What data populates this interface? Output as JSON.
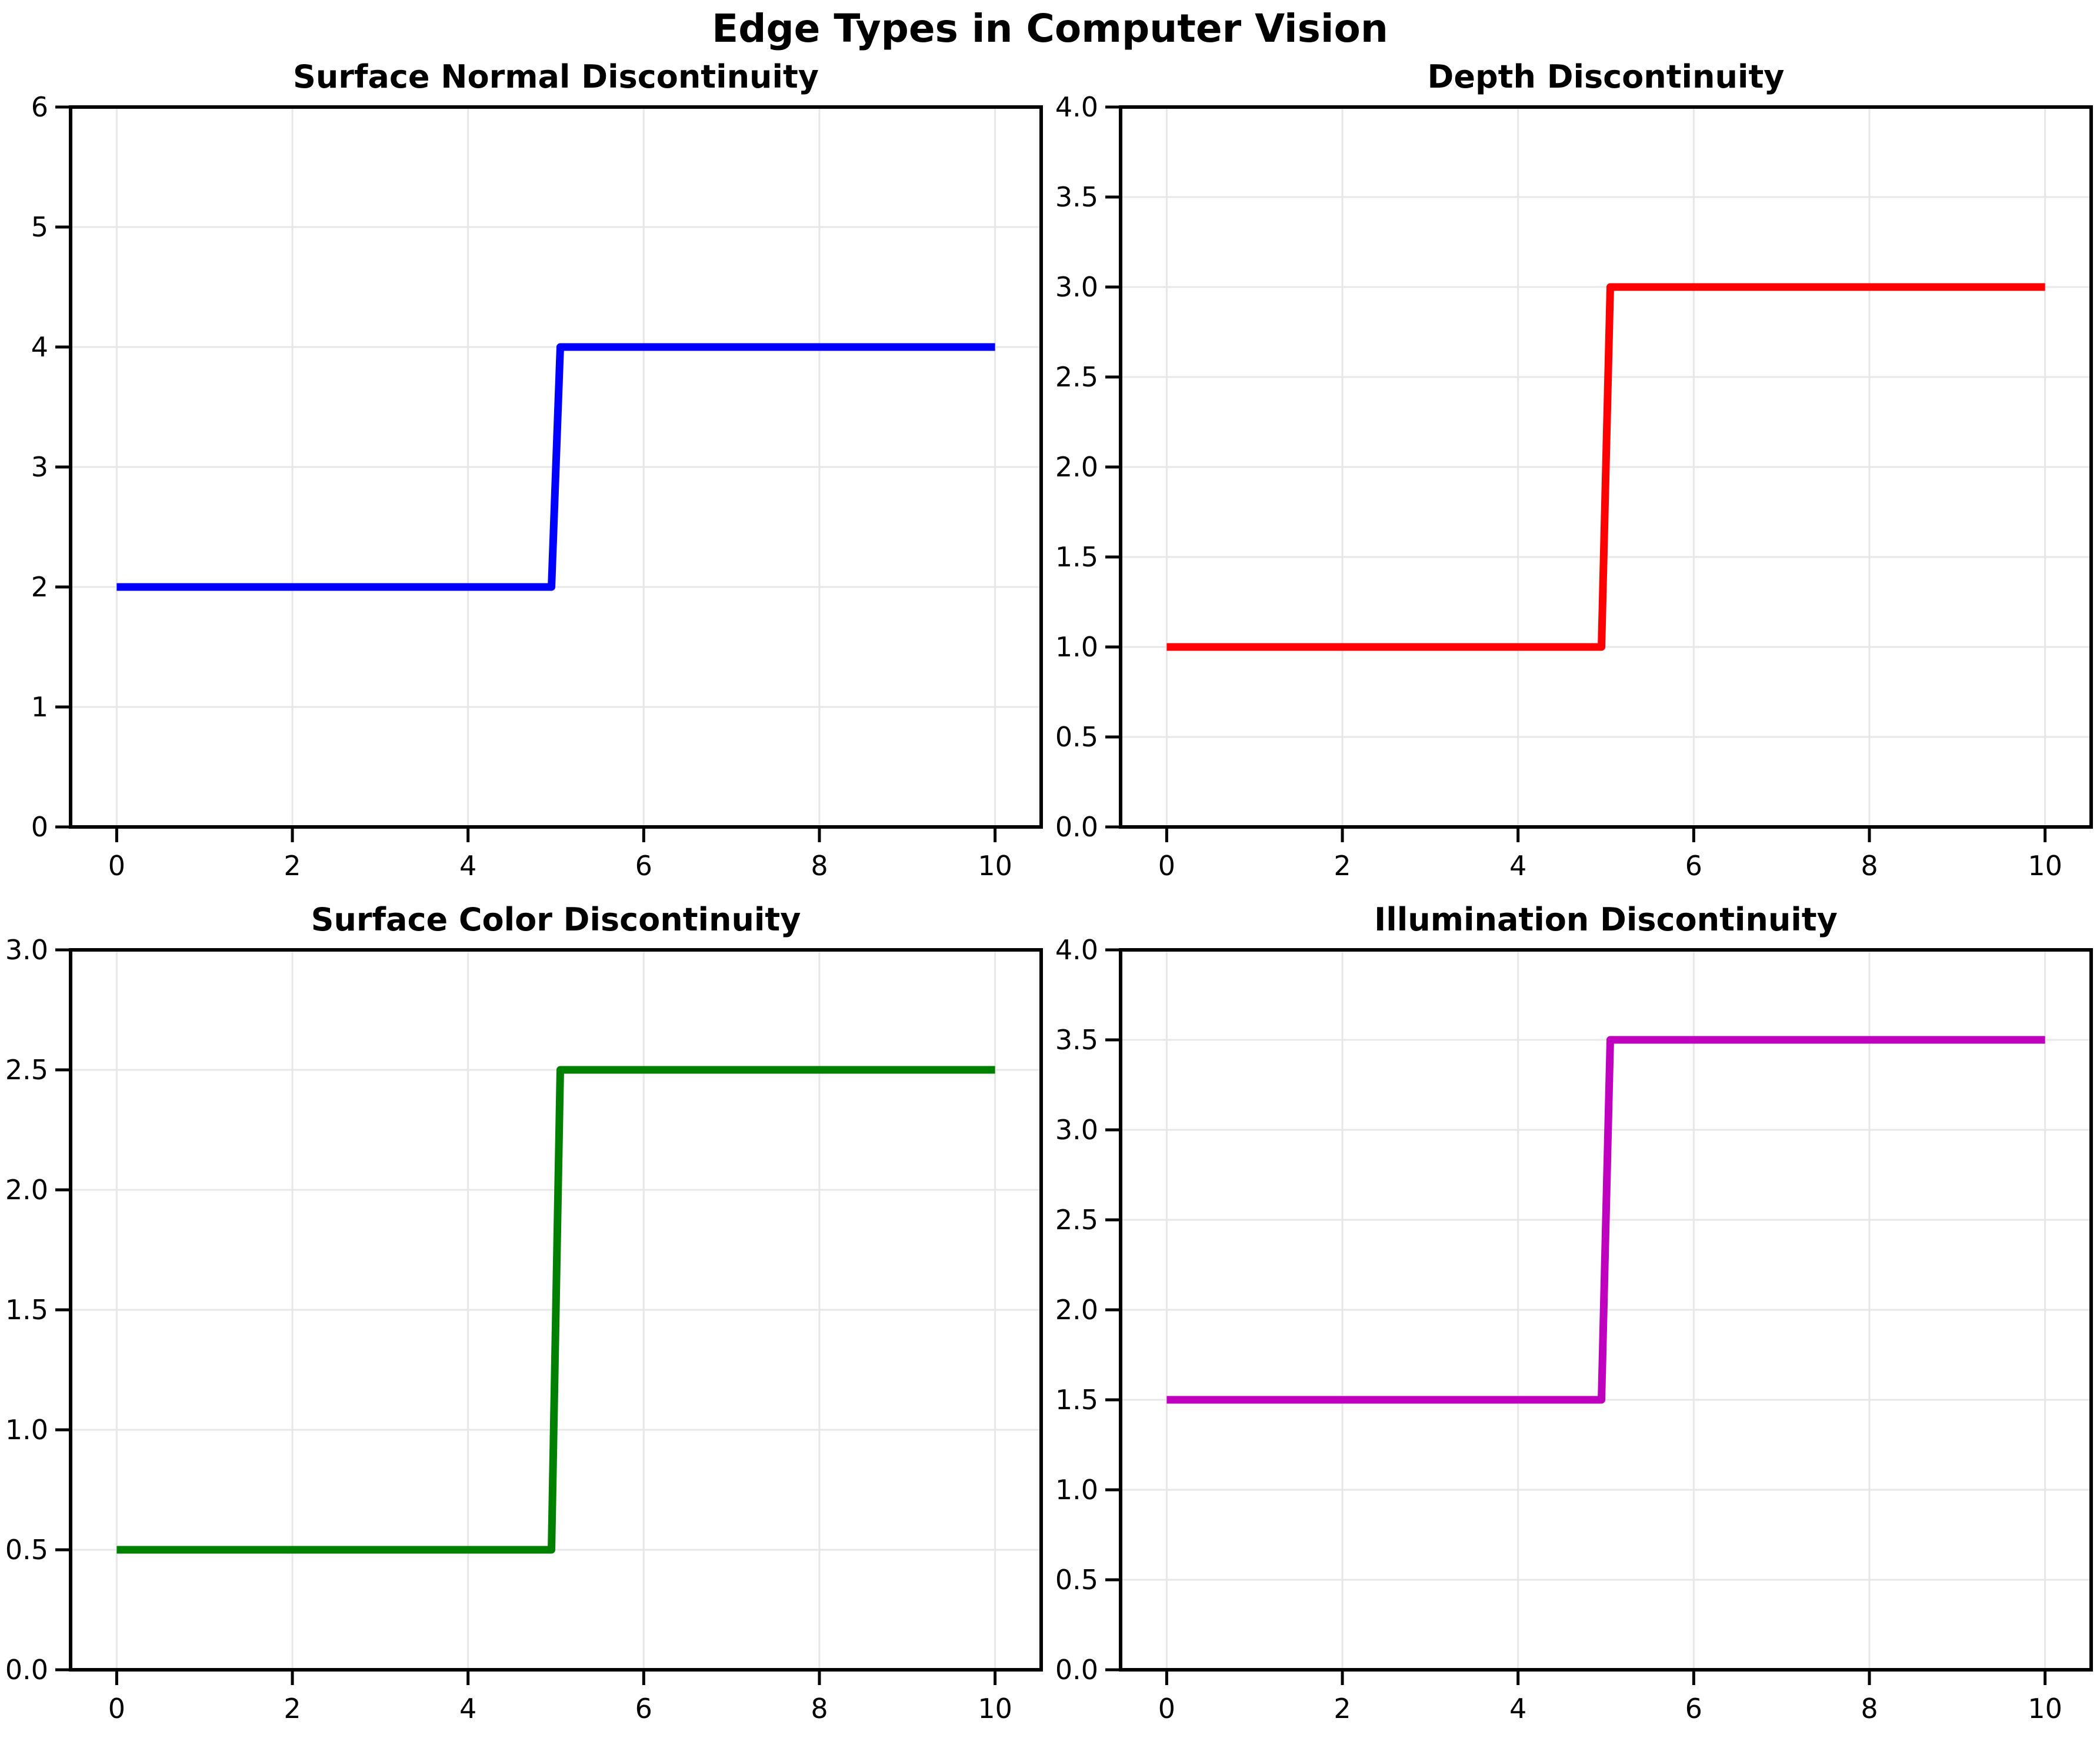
{
  "page": {
    "title": "Edge Types in Computer Vision"
  },
  "style": {
    "background": "#FFFFFF",
    "axis_color": "#000000",
    "grid_color": "#E7E7E7",
    "text_color": "#000000"
  },
  "chart_data": [
    {
      "type": "line",
      "title": "Surface Normal Discontinuity",
      "color": "#0000FF",
      "x": [
        0,
        4.95,
        5.05,
        10
      ],
      "y": [
        2,
        2,
        4,
        4
      ],
      "step": {
        "at_x": 5,
        "from": 2,
        "to": 4
      },
      "xlim": [
        -0.525,
        10.525
      ],
      "ylim": [
        0,
        6
      ],
      "xticks": [
        0,
        2,
        4,
        6,
        8,
        10
      ],
      "xtick_labels": [
        "0",
        "2",
        "4",
        "6",
        "8",
        "10"
      ],
      "yticks": [
        0,
        1,
        2,
        3,
        4,
        5,
        6
      ],
      "ytick_labels": [
        "0",
        "1",
        "2",
        "3",
        "4",
        "5",
        "6"
      ],
      "xlabel": "",
      "ylabel": "",
      "grid": true,
      "legend": null
    },
    {
      "type": "line",
      "title": "Depth Discontinuity",
      "color": "#FF0000",
      "x": [
        0,
        4.95,
        5.05,
        10
      ],
      "y": [
        1,
        1,
        3,
        3
      ],
      "step": {
        "at_x": 5,
        "from": 1,
        "to": 3
      },
      "xlim": [
        -0.525,
        10.525
      ],
      "ylim": [
        0,
        4
      ],
      "xticks": [
        0,
        2,
        4,
        6,
        8,
        10
      ],
      "xtick_labels": [
        "0",
        "2",
        "4",
        "6",
        "8",
        "10"
      ],
      "yticks": [
        0,
        0.5,
        1,
        1.5,
        2,
        2.5,
        3,
        3.5,
        4
      ],
      "ytick_labels": [
        "0.0",
        "0.5",
        "1.0",
        "1.5",
        "2.0",
        "2.5",
        "3.0",
        "3.5",
        "4.0"
      ],
      "xlabel": "",
      "ylabel": "",
      "grid": true,
      "legend": null
    },
    {
      "type": "line",
      "title": "Surface Color Discontinuity",
      "color": "#008000",
      "x": [
        0,
        4.95,
        5.05,
        10
      ],
      "y": [
        0.5,
        0.5,
        2.5,
        2.5
      ],
      "step": {
        "at_x": 5,
        "from": 0.5,
        "to": 2.5
      },
      "xlim": [
        -0.525,
        10.525
      ],
      "ylim": [
        0,
        3
      ],
      "xticks": [
        0,
        2,
        4,
        6,
        8,
        10
      ],
      "xtick_labels": [
        "0",
        "2",
        "4",
        "6",
        "8",
        "10"
      ],
      "yticks": [
        0,
        0.5,
        1,
        1.5,
        2,
        2.5,
        3
      ],
      "ytick_labels": [
        "0.0",
        "0.5",
        "1.0",
        "1.5",
        "2.0",
        "2.5",
        "3.0"
      ],
      "xlabel": "",
      "ylabel": "",
      "grid": true,
      "legend": null
    },
    {
      "type": "line",
      "title": "Illumination Discontinuity",
      "color": "#BF00BF",
      "x": [
        0,
        4.95,
        5.05,
        10
      ],
      "y": [
        1.5,
        1.5,
        3.5,
        3.5
      ],
      "step": {
        "at_x": 5,
        "from": 1.5,
        "to": 3.5
      },
      "xlim": [
        -0.525,
        10.525
      ],
      "ylim": [
        0,
        4
      ],
      "xticks": [
        0,
        2,
        4,
        6,
        8,
        10
      ],
      "xtick_labels": [
        "0",
        "2",
        "4",
        "6",
        "8",
        "10"
      ],
      "yticks": [
        0,
        0.5,
        1,
        1.5,
        2,
        2.5,
        3,
        3.5,
        4
      ],
      "ytick_labels": [
        "0.0",
        "0.5",
        "1.0",
        "1.5",
        "2.0",
        "2.5",
        "3.0",
        "3.5",
        "4.0"
      ],
      "xlabel": "",
      "ylabel": "",
      "grid": true,
      "legend": null
    }
  ]
}
